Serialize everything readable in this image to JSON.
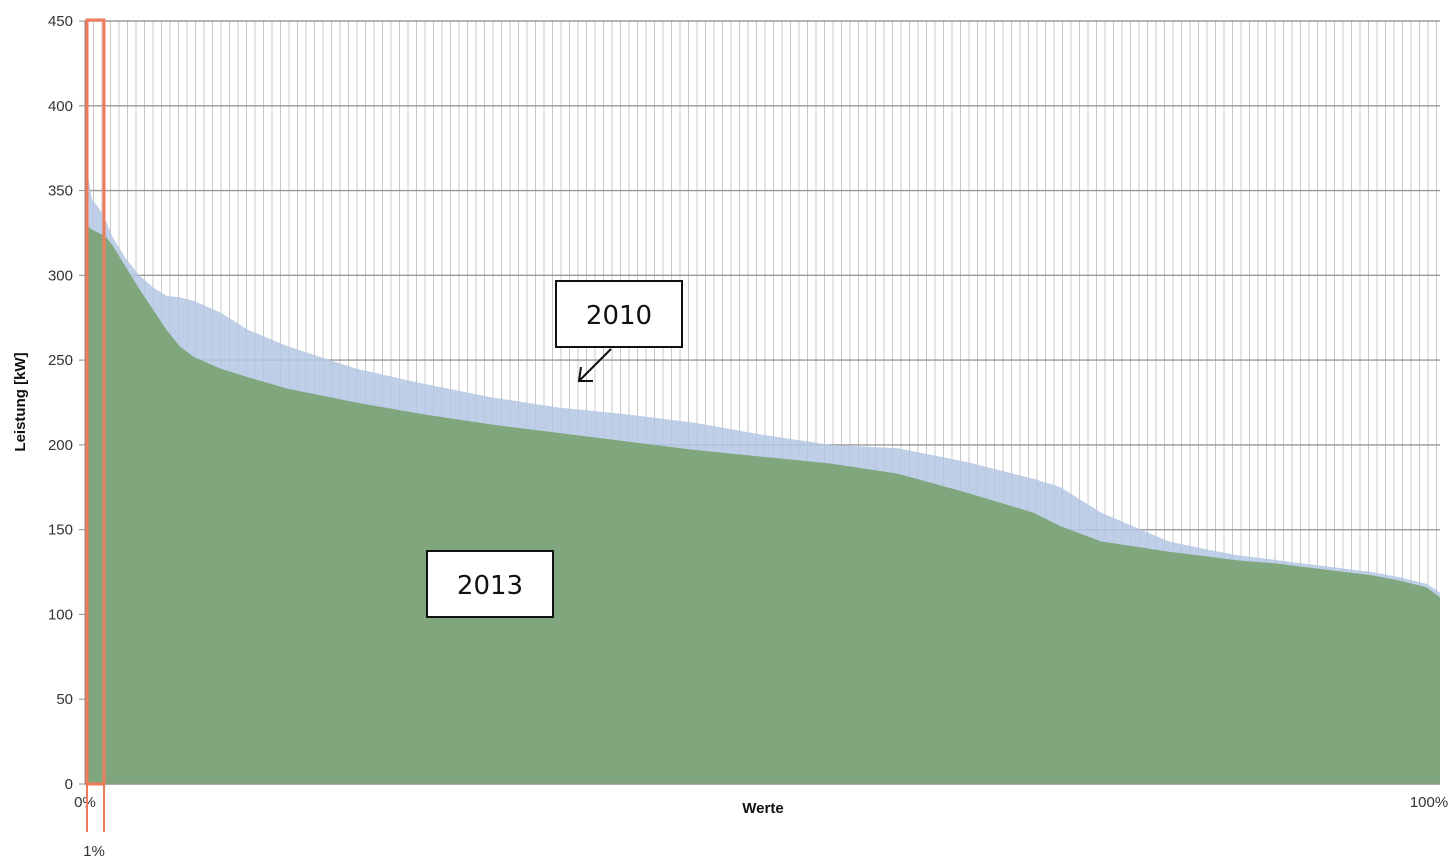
{
  "chart_data": {
    "type": "area",
    "xlabel": "Werte",
    "ylabel": "Leistung [kW]",
    "ylim": [
      0,
      450
    ],
    "yticks": [
      "0",
      "50",
      "100",
      "150",
      "200",
      "250",
      "300",
      "350",
      "400",
      "450"
    ],
    "xlim": [
      0,
      100
    ],
    "xticks": [
      "0%",
      "100%"
    ],
    "grid": true,
    "annotations": {
      "box_2010": "2010",
      "box_2013": "2013",
      "highlight_label": "1%"
    },
    "highlight_range": [
      0,
      1
    ],
    "series": [
      {
        "name": "2010",
        "color": "#b3c7e3",
        "x": [
          0,
          0.2,
          0.5,
          1,
          1.5,
          2,
          3,
          4,
          5,
          6,
          7,
          8,
          10,
          12,
          15,
          20,
          25,
          30,
          35,
          40,
          45,
          50,
          55,
          60,
          65,
          70,
          72,
          75,
          80,
          83,
          85,
          88,
          90,
          92,
          95,
          97,
          99,
          100
        ],
        "values": [
          380,
          360,
          345,
          340,
          333,
          323,
          310,
          300,
          293,
          288,
          287,
          285,
          278,
          268,
          258,
          245,
          236,
          228,
          222,
          218,
          213,
          206,
          200,
          198,
          190,
          180,
          175,
          160,
          143,
          138,
          135,
          132,
          130,
          128,
          125,
          122,
          118,
          113
        ]
      },
      {
        "name": "2013",
        "color": "#7fa67c",
        "x": [
          0,
          0.2,
          0.5,
          1,
          1.5,
          2,
          3,
          4,
          5,
          6,
          7,
          8,
          10,
          12,
          15,
          20,
          25,
          30,
          35,
          40,
          45,
          50,
          55,
          60,
          65,
          70,
          72,
          75,
          80,
          83,
          85,
          88,
          90,
          92,
          95,
          97,
          99,
          100
        ],
        "values": [
          332,
          329,
          327,
          325,
          323,
          318,
          305,
          292,
          280,
          268,
          258,
          252,
          245,
          240,
          233,
          225,
          218,
          212,
          207,
          202,
          197,
          193,
          189,
          183,
          172,
          160,
          152,
          143,
          137,
          134,
          132,
          130,
          128,
          126,
          123,
          120,
          116,
          110
        ]
      }
    ]
  }
}
